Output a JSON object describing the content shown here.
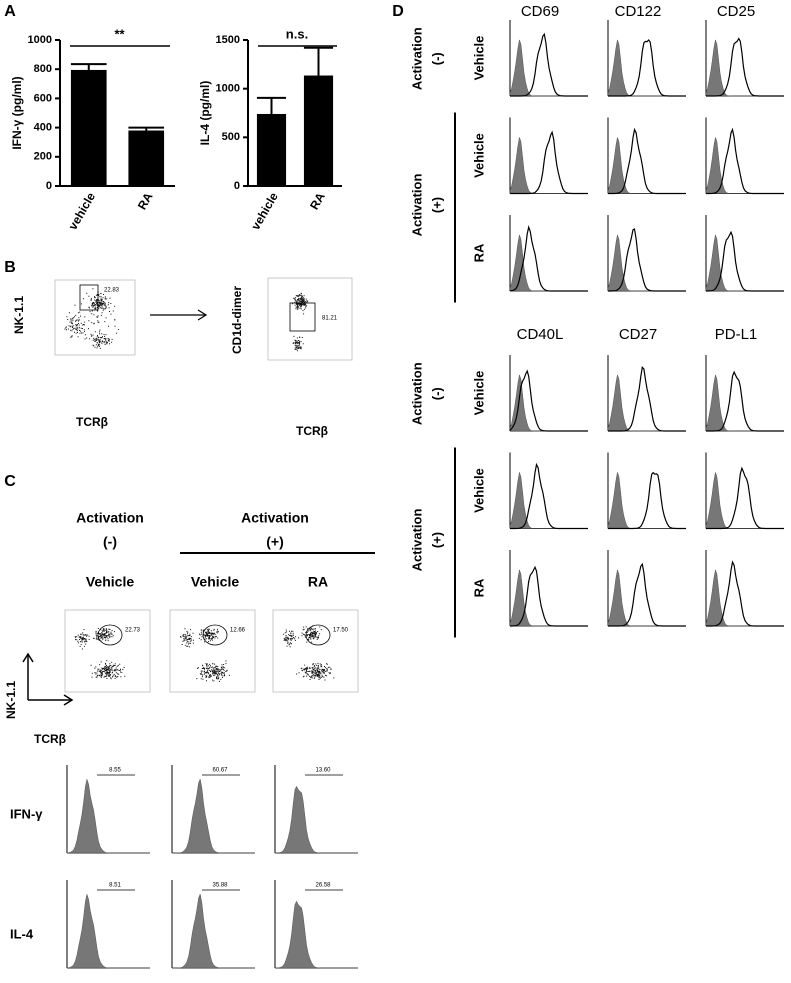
{
  "panel_labels": [
    "A",
    "B",
    "C",
    "D"
  ],
  "chart_data": [
    {
      "type": "bar",
      "ylabel": "IFN-γ (pg/ml)",
      "categories": [
        "vehicle",
        "RA"
      ],
      "values": [
        795,
        380
      ],
      "errors": [
        40,
        20
      ],
      "color": "#000000",
      "ylim": [
        0,
        1000
      ],
      "yticks": [
        0,
        200,
        400,
        600,
        800,
        1000
      ],
      "annotation": "**"
    },
    {
      "type": "bar",
      "ylabel": "IL-4 (pg/ml)",
      "categories": [
        "vehicle",
        "RA"
      ],
      "values": [
        740,
        1135
      ],
      "errors": [
        165,
        285
      ],
      "color": "#000000",
      "ylim": [
        0,
        1500
      ],
      "yticks": [
        0,
        500,
        1000,
        1500
      ],
      "annotation": "n.s."
    }
  ],
  "panel_b": {
    "plots": [
      {
        "ylabel": "NK-1.1",
        "xlabel": "TCRβ",
        "gate_value": "22.83"
      },
      {
        "ylabel": "CD1d-dimer",
        "xlabel": "TCRβ",
        "gate_value": "81.21"
      }
    ]
  },
  "panel_c": {
    "groups": [
      {
        "title": "Activation",
        "sign": "(-)"
      },
      {
        "title": "Activation",
        "sign": "(+)"
      }
    ],
    "columns": [
      "Vehicle",
      "Vehicle",
      "RA"
    ],
    "dot_plot": {
      "ylabel": "NK-1.1",
      "xlabel": "TCRβ",
      "values": [
        "22.73",
        "12.66",
        "17.50"
      ]
    },
    "rows": [
      {
        "label": "IFN-γ",
        "values": [
          "8.55",
          "60.67",
          "13.60"
        ]
      },
      {
        "label": "IL-4",
        "values": [
          "8.51",
          "35.88",
          "26.58"
        ]
      }
    ]
  },
  "panel_d": {
    "blocks": [
      {
        "markers": [
          "CD69",
          "CD122",
          "CD25"
        ]
      },
      {
        "markers": [
          "CD40L",
          "CD27",
          "PD-L1"
        ]
      }
    ],
    "groups": [
      {
        "title": "Activation",
        "sign": "(-)",
        "rows": [
          "Vehicle"
        ]
      },
      {
        "title": "Activation",
        "sign": "(+)",
        "rows": [
          "Vehicle",
          "RA"
        ]
      }
    ]
  }
}
